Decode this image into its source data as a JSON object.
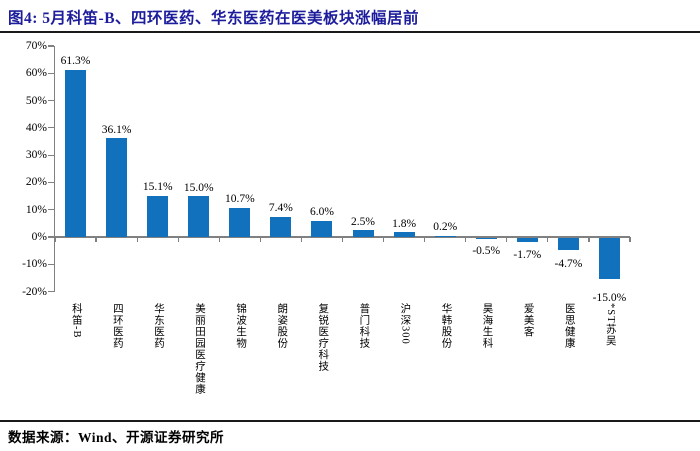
{
  "header": {
    "title": "图4: 5月科笛-B、四环医药、华东医药在医美板块涨幅居前"
  },
  "chart_data": {
    "type": "bar",
    "title": "图4: 5月科笛-B、四环医药、华东医药在医美板块涨幅居前",
    "categories": [
      "科笛-B",
      "四环医药",
      "华东医药",
      "美丽田园医疗健康",
      "锦波生物",
      "朗姿股份",
      "复锐医疗科技",
      "普门科技",
      "沪深300",
      "华韩股份",
      "昊海生科",
      "爱美客",
      "医思健康",
      "*ST苏吴"
    ],
    "values": [
      61.3,
      36.1,
      15.1,
      15.0,
      10.7,
      7.4,
      6.0,
      2.5,
      1.8,
      0.2,
      -0.5,
      -1.7,
      -4.7,
      -15.0
    ],
    "value_labels": [
      "61.3%",
      "36.1%",
      "15.1%",
      "15.0%",
      "10.7%",
      "7.4%",
      "6.0%",
      "2.5%",
      "1.8%",
      "0.2%",
      "-0.5%",
      "-1.7%",
      "-4.7%",
      "-15.0%"
    ],
    "y_tick_labels": [
      "70%",
      "60%",
      "50%",
      "40%",
      "30%",
      "20%",
      "10%",
      "0%",
      "-10%",
      "-20%"
    ],
    "ylim": [
      -20,
      70
    ],
    "grid": false,
    "legend": "none",
    "xlabel": "",
    "ylabel": ""
  },
  "footer": {
    "source": "数据来源：Wind、开源证券研究所"
  },
  "colors": {
    "bar": "#1171BD",
    "axis": "#808080",
    "title": "#1C1C9C",
    "divider": "#1A1A1A",
    "text": "#000000"
  }
}
